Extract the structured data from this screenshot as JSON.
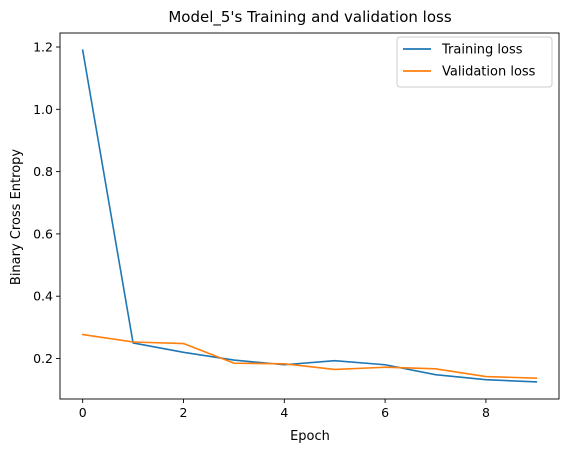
{
  "chart_data": {
    "type": "line",
    "title": "Model_5's Training and validation loss",
    "xlabel": "Epoch",
    "ylabel": "Binary Cross Entropy",
    "x": [
      0,
      1,
      2,
      3,
      4,
      5,
      6,
      7,
      8,
      9
    ],
    "xlim": [
      -0.45,
      9.45
    ],
    "ylim": [
      0.07,
      1.245
    ],
    "xticks": [
      0,
      2,
      4,
      6,
      8
    ],
    "yticks": [
      0.2,
      0.4,
      0.6,
      0.8,
      1.0,
      1.2
    ],
    "ytick_labels": [
      "0.2",
      "0.4",
      "0.6",
      "0.8",
      "1.0",
      "1.2"
    ],
    "grid": false,
    "legend_position": "top-right",
    "series": [
      {
        "name": "Training loss",
        "color": "#1f77b4",
        "values": [
          1.19,
          0.25,
          0.22,
          0.195,
          0.18,
          0.193,
          0.18,
          0.148,
          0.132,
          0.125
        ]
      },
      {
        "name": "Validation loss",
        "color": "#ff7f0e",
        "values": [
          0.277,
          0.253,
          0.248,
          0.185,
          0.183,
          0.165,
          0.172,
          0.167,
          0.142,
          0.137
        ]
      }
    ]
  }
}
